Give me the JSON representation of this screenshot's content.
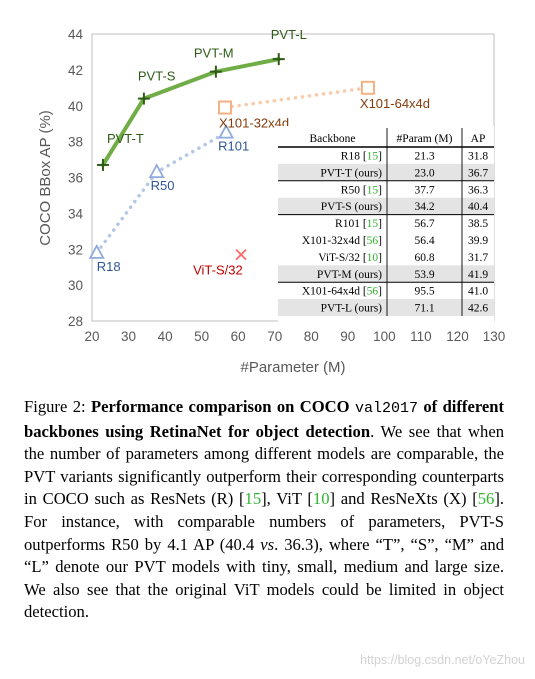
{
  "chart_data": {
    "type": "line",
    "xlabel": "#Parameter (M)",
    "ylabel": "COCO BBox AP (%)",
    "xlim": [
      20,
      130
    ],
    "ylim": [
      28,
      44
    ],
    "xticks": [
      20,
      30,
      40,
      50,
      60,
      70,
      80,
      90,
      100,
      110,
      120,
      130
    ],
    "yticks": [
      28,
      30,
      32,
      34,
      36,
      38,
      40,
      42,
      44
    ],
    "grid": false,
    "series": [
      {
        "name": "PVT",
        "style": "solid",
        "marker": "plus",
        "color": "#70ad47",
        "marker_color": "#2e5c16",
        "points": [
          {
            "label": "PVT-T",
            "x": 23.0,
            "y": 36.7
          },
          {
            "label": "PVT-S",
            "x": 34.2,
            "y": 40.4
          },
          {
            "label": "PVT-M",
            "x": 53.9,
            "y": 41.9
          },
          {
            "label": "PVT-L",
            "x": 71.1,
            "y": 42.6
          }
        ]
      },
      {
        "name": "ResNet",
        "style": "dotted",
        "marker": "triangle",
        "color": "#b4c7e7",
        "marker_color": "#8faadc",
        "label_color": "#2f5597",
        "points": [
          {
            "label": "R18",
            "x": 21.3,
            "y": 31.8
          },
          {
            "label": "R50",
            "x": 37.7,
            "y": 36.3
          },
          {
            "label": "R101",
            "x": 56.7,
            "y": 38.5
          }
        ]
      },
      {
        "name": "ResNeXt",
        "style": "dotted",
        "marker": "square",
        "color": "#f8cbad",
        "marker_color": "#f4b183",
        "label_color": "#843c0c",
        "points": [
          {
            "label": "X101-32x4d",
            "x": 56.4,
            "y": 39.9
          },
          {
            "label": "X101-64x4d",
            "x": 95.5,
            "y": 41.0
          }
        ]
      },
      {
        "name": "ViT",
        "style": "none",
        "marker": "x",
        "color": "#ff6b6b",
        "marker_color": "#ff6b6b",
        "label_color": "#c00000",
        "points": [
          {
            "label": "ViT-S/32",
            "x": 60.8,
            "y": 31.7
          }
        ]
      }
    ],
    "table": {
      "headers": [
        "Backbone",
        "#Param (M)",
        "AP"
      ],
      "rows": [
        {
          "name": "R18",
          "cite": "15",
          "param": "21.3",
          "ap": "31.8",
          "shaded": false
        },
        {
          "name": "PVT-T (ours)",
          "cite": "",
          "param": "23.0",
          "ap": "36.7",
          "shaded": true
        },
        {
          "name": "R50",
          "cite": "15",
          "param": "37.7",
          "ap": "36.3",
          "shaded": false
        },
        {
          "name": "PVT-S (ours)",
          "cite": "",
          "param": "34.2",
          "ap": "40.4",
          "shaded": true
        },
        {
          "name": "R101",
          "cite": "15",
          "param": "56.7",
          "ap": "38.5",
          "shaded": false
        },
        {
          "name": "X101-32x4d",
          "cite": "56",
          "param": "56.4",
          "ap": "39.9",
          "shaded": false
        },
        {
          "name": "ViT-S/32",
          "cite": "10",
          "param": "60.8",
          "ap": "31.7",
          "shaded": false
        },
        {
          "name": "PVT-M (ours)",
          "cite": "",
          "param": "53.9",
          "ap": "41.9",
          "shaded": true
        },
        {
          "name": "X101-64x4d",
          "cite": "56",
          "param": "95.5",
          "ap": "41.0",
          "shaded": false
        },
        {
          "name": "PVT-L (ours)",
          "cite": "",
          "param": "71.1",
          "ap": "42.6",
          "shaded": true
        }
      ],
      "group_breaks_after": [
        1,
        3,
        7
      ]
    }
  },
  "caption": {
    "prefix": "Figure 2: ",
    "bold_1": "Performance comparison on COCO",
    "mono": "val2017",
    "bold_2": "of different backbones using RetinaNet for object detection",
    "t1": ". We see that when the number of parameters among different models are comparable, the PVT variants significantly outperform their corresponding counterparts in COCO such as ResNets (R) [",
    "c1": "15",
    "t2": "], ViT [",
    "c2": "10",
    "t3": "] and ResNeXts (X) [",
    "c3": "56",
    "t4": "]. For instance, with comparable numbers of parameters, PVT-S outperforms R50 by 4.1 AP (40.4 ",
    "vs": "vs",
    "t5": ". 36.3), where “T”, “S”, “M” and “L” denote our PVT models with tiny, small, medium and large size.  We also see that the original ViT models could be limited in object detection."
  },
  "watermark": "https://blog.csdn.net/oYeZhou"
}
